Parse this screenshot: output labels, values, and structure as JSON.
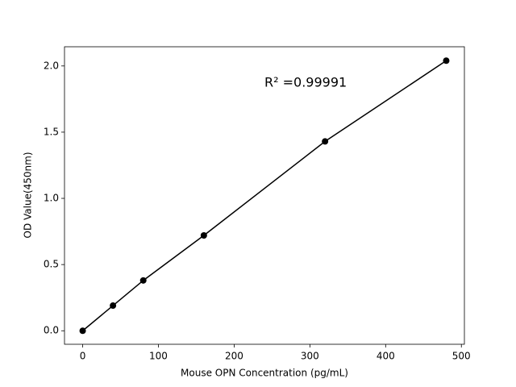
{
  "chart_data": {
    "type": "line",
    "x_label": "Mouse OPN Concentration (pg/mL)",
    "y_label": "OD Value(450nm)",
    "annotation": "R² =0.99991",
    "x": [
      0,
      40,
      80,
      160,
      320,
      480
    ],
    "series": [
      {
        "color": "#000000",
        "values": [
          0.0,
          0.19,
          0.38,
          0.72,
          1.43,
          2.04
        ]
      }
    ],
    "xlim": [
      -24,
      504
    ],
    "ylim": [
      -0.102,
      2.145
    ],
    "xticks": [
      0,
      100,
      200,
      300,
      400,
      500
    ],
    "yticks": [
      {
        "value": 0,
        "label": "0.0"
      },
      0.5,
      {
        "value": 1,
        "label": "1.0"
      },
      1.5,
      {
        "value": 2,
        "label": "2.0"
      }
    ],
    "grid": false
  }
}
